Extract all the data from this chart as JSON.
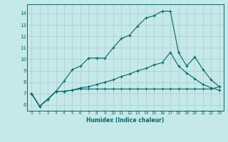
{
  "title": "",
  "xlabel": "Humidex (Indice chaleur)",
  "background_color": "#c5e8e8",
  "grid_color": "#aacccc",
  "line_color": "#006868",
  "xlim": [
    -0.5,
    23.5
  ],
  "ylim": [
    5.5,
    14.8
  ],
  "xticks": [
    0,
    1,
    2,
    3,
    4,
    5,
    6,
    7,
    8,
    9,
    10,
    11,
    12,
    13,
    14,
    15,
    16,
    17,
    18,
    19,
    20,
    21,
    22,
    23
  ],
  "yticks": [
    6,
    7,
    8,
    9,
    10,
    11,
    12,
    13,
    14
  ],
  "line1_x": [
    0,
    1,
    2,
    3,
    4,
    5,
    6,
    7,
    8,
    9,
    10,
    11,
    12,
    13,
    14,
    15,
    16,
    17,
    18,
    19,
    20,
    21,
    22,
    23
  ],
  "line1_y": [
    7.0,
    5.9,
    6.5,
    7.2,
    8.1,
    9.1,
    9.4,
    10.1,
    10.1,
    10.1,
    11.0,
    11.8,
    12.1,
    12.9,
    13.6,
    13.8,
    14.2,
    14.2,
    10.6,
    9.4,
    10.2,
    9.1,
    8.2,
    7.6
  ],
  "line2_x": [
    0,
    1,
    2,
    3,
    4,
    5,
    6,
    7,
    8,
    9,
    10,
    11,
    12,
    13,
    14,
    15,
    16,
    17,
    18,
    19,
    20,
    21,
    22,
    23
  ],
  "line2_y": [
    7.0,
    5.9,
    6.5,
    7.2,
    7.2,
    7.3,
    7.5,
    7.6,
    7.8,
    8.0,
    8.2,
    8.5,
    8.7,
    9.0,
    9.2,
    9.5,
    9.7,
    10.6,
    9.4,
    8.8,
    8.3,
    7.8,
    7.5,
    7.3
  ],
  "line3_x": [
    0,
    1,
    2,
    3,
    4,
    5,
    6,
    7,
    8,
    9,
    10,
    11,
    12,
    13,
    14,
    15,
    16,
    17,
    18,
    19,
    20,
    21,
    22,
    23
  ],
  "line3_y": [
    7.0,
    5.9,
    6.5,
    7.2,
    7.2,
    7.3,
    7.4,
    7.4,
    7.4,
    7.4,
    7.4,
    7.4,
    7.4,
    7.4,
    7.4,
    7.4,
    7.4,
    7.4,
    7.4,
    7.4,
    7.4,
    7.4,
    7.4,
    7.6
  ]
}
